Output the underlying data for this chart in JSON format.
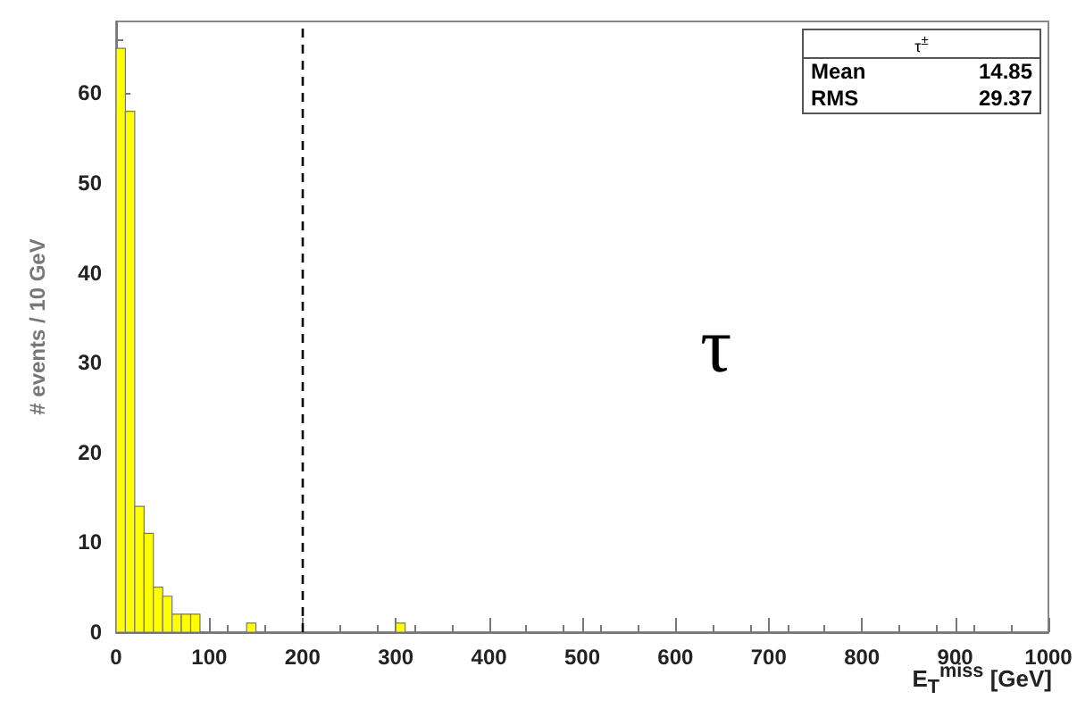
{
  "chart_data": {
    "type": "histogram",
    "xlabel": "E$_{T}$$^{miss}$ [GeV]",
    "ylabel": "# events / 10 GeV",
    "bins": [
      0,
      10,
      20,
      30,
      40,
      50,
      60,
      70,
      80,
      90,
      100,
      110,
      120,
      130,
      140,
      150,
      160,
      170,
      180,
      190,
      200,
      210,
      220,
      230,
      240,
      250,
      260,
      270,
      280,
      290,
      300,
      310,
      320,
      330,
      340,
      350,
      360,
      370,
      380,
      390,
      400,
      410,
      420,
      430,
      440,
      450,
      460,
      470,
      480,
      490,
      500,
      510,
      520,
      530,
      540,
      550,
      560,
      570,
      580,
      590,
      600,
      610,
      620,
      630,
      640,
      650,
      660,
      670,
      680,
      690,
      700,
      710,
      720,
      730,
      740,
      750,
      760,
      770,
      780,
      790,
      800,
      810,
      820,
      830,
      840,
      850,
      860,
      870,
      880,
      890,
      900,
      910,
      920,
      930,
      940,
      950,
      960,
      970,
      980,
      990,
      1000
    ],
    "values": [
      65,
      58,
      14,
      11,
      5,
      4,
      2,
      2,
      2,
      0,
      0,
      0,
      0,
      0,
      1,
      0,
      0,
      0,
      0,
      0,
      0,
      0,
      0,
      0,
      0,
      0,
      0,
      0,
      0,
      0,
      1,
      0,
      0,
      0,
      0,
      0,
      0,
      0,
      0,
      0,
      0,
      0,
      0,
      0,
      0,
      0,
      0,
      0,
      0,
      0,
      0,
      0,
      0,
      0,
      0,
      0,
      0,
      0,
      0,
      0,
      0,
      0,
      0,
      0,
      0,
      0,
      0,
      0,
      0,
      0,
      0,
      0,
      0,
      0,
      0,
      0,
      0,
      0,
      0,
      0,
      0,
      0,
      0,
      0,
      0,
      0,
      0,
      0,
      0,
      0,
      0,
      0,
      0,
      0,
      0,
      0,
      0,
      0,
      0,
      0
    ],
    "color": "#ffff00",
    "xlim": [
      0,
      1000
    ],
    "xticks": [
      0,
      100,
      200,
      300,
      400,
      500,
      600,
      700,
      800,
      900,
      1000
    ],
    "ylim": [
      0,
      68
    ],
    "yticks": [
      0,
      10,
      20,
      30,
      40,
      50,
      60
    ],
    "grid": false,
    "ref_lines": [
      {
        "axis": "x",
        "value": 200,
        "line_style": "dashed",
        "color": "#000000"
      }
    ],
    "annotations": [
      "τ",
      "τ$^{±}$",
      "Mean",
      "14.85",
      "RMS",
      "29.37"
    ]
  }
}
